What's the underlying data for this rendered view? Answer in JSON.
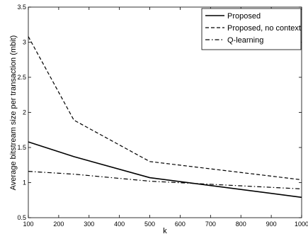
{
  "chart_data": {
    "type": "line",
    "title": "",
    "xlabel": "k",
    "ylabel": "Average bitstream size per transaction (mbit)",
    "xlim": [
      100,
      1000
    ],
    "ylim": [
      0.5,
      3.5
    ],
    "xticks": [
      "100",
      "200",
      "300",
      "400",
      "500",
      "600",
      "700",
      "800",
      "900",
      "1000"
    ],
    "yticks": [
      "0.5",
      "1",
      "1.5",
      "2",
      "2.5",
      "3",
      "3.5"
    ],
    "grid": false,
    "legend_position": "top-right",
    "series": [
      {
        "name": "Proposed",
        "style": "solid",
        "x": [
          100,
          250,
          500,
          1000
        ],
        "y": [
          1.58,
          1.37,
          1.07,
          0.79
        ]
      },
      {
        "name": "Proposed, no context",
        "style": "dashed",
        "x": [
          100,
          250,
          500,
          1000
        ],
        "y": [
          3.08,
          1.89,
          1.3,
          1.04
        ]
      },
      {
        "name": "Q-learning",
        "style": "dashdot",
        "x": [
          100,
          250,
          500,
          1000
        ],
        "y": [
          1.16,
          1.12,
          1.02,
          0.91
        ]
      }
    ]
  },
  "colors": {
    "line": "#000000",
    "background": "#ffffff"
  }
}
